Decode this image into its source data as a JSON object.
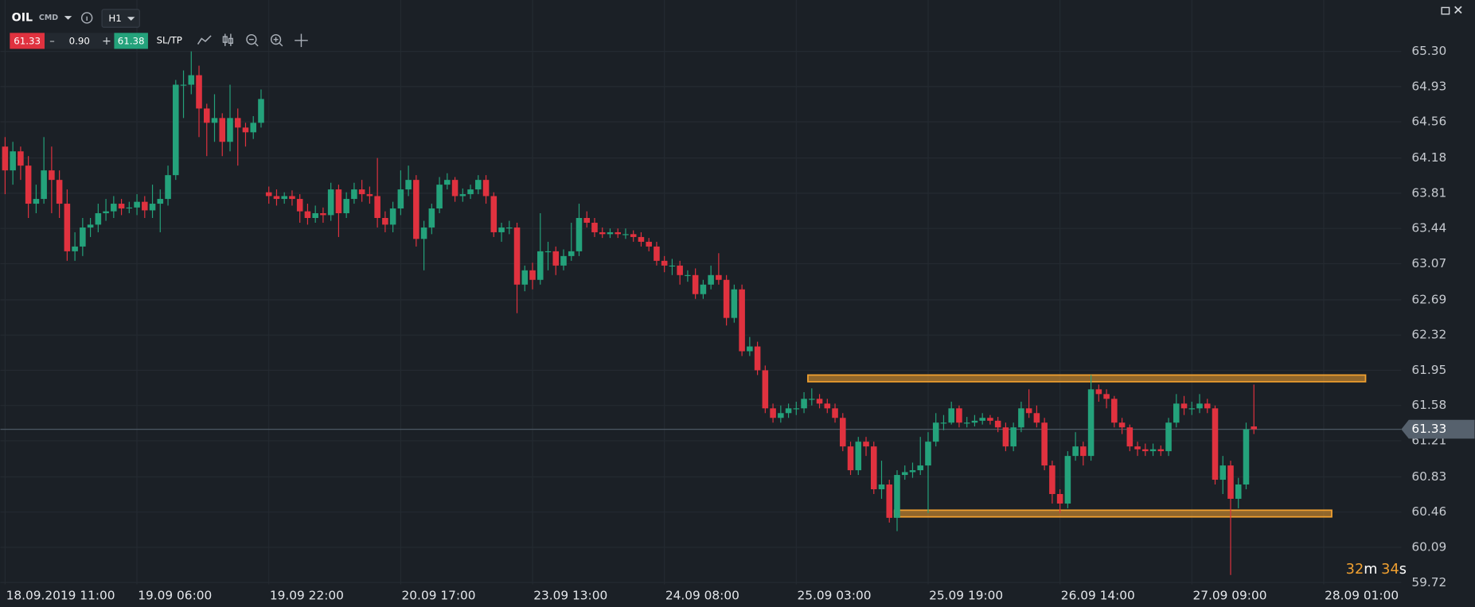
{
  "toolbar": {
    "symbol": "OIL",
    "kind": "CMD",
    "timeframe": "H1",
    "sell": 61.33,
    "volume": "0.90",
    "buy": 61.38,
    "sltp": "SL/TP"
  },
  "countdown": {
    "minutes": 32,
    "minutes_unit": "m",
    "seconds": 34,
    "seconds_unit": "s"
  },
  "chart_data": {
    "type": "candlestick",
    "up_color": "#24a27b",
    "down_color": "#e0323f",
    "grid": true,
    "categories": [
      "18.09.2019 11:00",
      null,
      null,
      null,
      null,
      null,
      null,
      null,
      null,
      null,
      null,
      null,
      null,
      null,
      null,
      null,
      null,
      "19.09 06:00",
      null,
      null,
      null,
      null,
      null,
      null,
      null,
      null,
      null,
      null,
      null,
      null,
      null,
      null,
      null,
      null,
      "19.09 22:00",
      null,
      null,
      null,
      null,
      null,
      null,
      null,
      null,
      null,
      null,
      null,
      null,
      null,
      null,
      null,
      null,
      "20.09 17:00",
      null,
      null,
      null,
      null,
      null,
      null,
      null,
      null,
      null,
      null,
      null,
      null,
      null,
      null,
      null,
      null,
      "23.09 13:00",
      null,
      null,
      null,
      null,
      null,
      null,
      null,
      null,
      null,
      null,
      null,
      null,
      null,
      null,
      null,
      null,
      "24.09 08:00",
      null,
      null,
      null,
      null,
      null,
      null,
      null,
      null,
      null,
      null,
      null,
      null,
      null,
      null,
      null,
      null,
      "25.09 03:00",
      null,
      null,
      null,
      null,
      null,
      null,
      null,
      null,
      null,
      null,
      null,
      null,
      null,
      null,
      null,
      null,
      "25.09 19:00",
      null,
      null,
      null,
      null,
      null,
      null,
      null,
      null,
      null,
      null,
      null,
      null,
      null,
      null,
      null,
      null,
      "26.09 14:00",
      null,
      null,
      null,
      null,
      null,
      null,
      null,
      null,
      null,
      null,
      null,
      null,
      null,
      null,
      null,
      null,
      "27.09 09:00",
      null,
      null,
      null,
      null,
      null,
      null,
      null,
      null,
      null,
      null,
      null,
      null,
      null,
      null,
      null,
      null,
      "28.09 01:00"
    ],
    "open": [
      64.3,
      64.05,
      64.25,
      64.1,
      63.7,
      63.75,
      64.05,
      63.95,
      63.7,
      63.2,
      63.25,
      63.45,
      63.48,
      63.6,
      63.62,
      63.7,
      63.65,
      63.66,
      63.72,
      63.63,
      63.7,
      63.75,
      64.0,
      64.95,
      64.95,
      65.05,
      64.7,
      64.55,
      64.6,
      64.35,
      64.6,
      64.5,
      64.45,
      64.55,
      63.82,
      63.78,
      63.75,
      63.78,
      63.75,
      63.62,
      63.55,
      63.6,
      63.58,
      63.85,
      63.6,
      63.75,
      63.85,
      63.8,
      63.78,
      63.55,
      63.48,
      63.65,
      63.85,
      63.95,
      63.33,
      63.45,
      63.65,
      63.9,
      63.95,
      63.78,
      63.8,
      63.85,
      63.95,
      63.78,
      63.4,
      63.45,
      63.45,
      62.85,
      63.0,
      62.9,
      63.2,
      63.2,
      63.05,
      63.15,
      63.2,
      63.55,
      63.5,
      63.4,
      63.38,
      63.4,
      63.38,
      63.38,
      63.35,
      63.3,
      63.25,
      63.1,
      63.05,
      63.05,
      62.95,
      62.95,
      62.75,
      62.85,
      62.95,
      62.9,
      62.5,
      62.8,
      62.15,
      62.2,
      61.95,
      61.55,
      61.45,
      61.5,
      61.55,
      61.55,
      61.65,
      61.65,
      61.6,
      61.55,
      61.45,
      61.15,
      60.9,
      61.2,
      61.15,
      60.7,
      60.75,
      60.4,
      60.85,
      60.88,
      60.9,
      60.95,
      61.2,
      61.4,
      61.4,
      61.55,
      61.4,
      61.4,
      61.42,
      61.45,
      61.42,
      61.35,
      61.15,
      61.35,
      61.55,
      61.5,
      61.4,
      60.95,
      60.65,
      60.55,
      61.05,
      61.15,
      61.05,
      61.75,
      61.7,
      61.65,
      61.4,
      61.35,
      61.15,
      61.12,
      61.1,
      61.12,
      61.1,
      61.4,
      61.6,
      61.55,
      61.55,
      61.6,
      61.55,
      60.8,
      60.95,
      60.6,
      60.75,
      61.36,
      null,
      null,
      null,
      null,
      null,
      null,
      null,
      null,
      null
    ],
    "high": [
      64.4,
      64.35,
      64.3,
      64.2,
      63.9,
      64.4,
      64.3,
      64.05,
      63.85,
      63.4,
      63.55,
      63.55,
      63.7,
      63.75,
      63.78,
      63.75,
      63.72,
      63.8,
      63.78,
      63.9,
      63.85,
      64.1,
      65.0,
      65.1,
      65.3,
      65.15,
      64.75,
      64.85,
      64.65,
      64.95,
      64.7,
      64.55,
      64.62,
      64.9,
      63.88,
      63.85,
      63.82,
      63.84,
      63.8,
      63.7,
      63.68,
      63.66,
      63.92,
      63.9,
      63.82,
      63.92,
      63.95,
      63.88,
      64.18,
      63.62,
      63.72,
      64.05,
      64.1,
      64.0,
      63.52,
      63.7,
      63.98,
      64.02,
      63.98,
      63.86,
      63.9,
      64.0,
      64.0,
      63.82,
      63.5,
      63.52,
      63.5,
      63.05,
      63.08,
      63.6,
      63.3,
      63.25,
      63.22,
      63.5,
      63.7,
      63.62,
      63.55,
      63.45,
      63.44,
      63.44,
      63.44,
      63.42,
      63.4,
      63.34,
      63.3,
      63.15,
      63.12,
      63.1,
      63.0,
      63.02,
      62.9,
      63.05,
      63.18,
      62.95,
      62.85,
      62.85,
      62.3,
      62.25,
      62.0,
      61.6,
      61.58,
      61.6,
      61.62,
      61.72,
      61.76,
      61.7,
      61.65,
      61.6,
      61.5,
      61.2,
      61.25,
      61.25,
      61.2,
      61.0,
      60.8,
      60.9,
      60.95,
      60.98,
      61.25,
      61.3,
      61.5,
      61.48,
      61.62,
      61.58,
      61.46,
      61.48,
      61.5,
      61.48,
      61.46,
      61.4,
      61.4,
      61.62,
      61.75,
      61.58,
      61.45,
      61.0,
      60.7,
      61.1,
      61.3,
      61.2,
      61.9,
      61.8,
      61.75,
      61.68,
      61.45,
      61.38,
      61.2,
      61.18,
      61.18,
      61.16,
      61.45,
      61.7,
      61.68,
      61.62,
      61.7,
      61.65,
      61.58,
      61.05,
      61.0,
      60.82,
      61.4,
      61.8,
      null,
      null,
      null,
      null,
      null,
      null,
      null,
      null,
      null
    ],
    "low": [
      63.8,
      63.9,
      63.95,
      63.55,
      63.6,
      63.7,
      63.6,
      63.55,
      63.1,
      63.1,
      63.15,
      63.35,
      63.4,
      63.52,
      63.55,
      63.58,
      63.6,
      63.58,
      63.55,
      63.55,
      63.4,
      63.68,
      63.95,
      64.6,
      64.85,
      64.4,
      64.2,
      64.35,
      64.2,
      64.25,
      64.1,
      64.3,
      64.38,
      64.5,
      63.7,
      63.68,
      63.7,
      63.68,
      63.5,
      63.48,
      63.5,
      63.5,
      63.52,
      63.35,
      63.55,
      63.7,
      63.72,
      63.7,
      63.45,
      63.4,
      63.4,
      63.58,
      63.78,
      63.25,
      63.0,
      63.38,
      63.6,
      63.85,
      63.72,
      63.72,
      63.75,
      63.8,
      63.7,
      63.35,
      63.3,
      63.38,
      62.55,
      62.78,
      62.8,
      62.85,
      63.0,
      62.95,
      63.0,
      63.1,
      63.15,
      63.45,
      63.35,
      63.34,
      63.34,
      63.34,
      63.33,
      63.3,
      63.25,
      63.2,
      63.05,
      62.98,
      62.95,
      62.85,
      62.88,
      62.7,
      62.7,
      62.8,
      62.85,
      62.42,
      62.45,
      62.1,
      62.1,
      61.9,
      61.5,
      61.4,
      61.4,
      61.45,
      61.48,
      61.5,
      61.58,
      61.55,
      61.5,
      61.4,
      61.1,
      60.85,
      60.85,
      61.05,
      60.65,
      60.6,
      60.35,
      60.26,
      60.8,
      60.82,
      60.85,
      60.45,
      61.15,
      61.32,
      61.38,
      61.35,
      61.35,
      61.36,
      61.38,
      61.38,
      61.3,
      61.1,
      61.1,
      61.3,
      61.45,
      61.35,
      60.9,
      60.55,
      60.45,
      60.5,
      61.0,
      60.95,
      61.0,
      61.62,
      61.55,
      61.35,
      61.28,
      61.1,
      61.05,
      61.05,
      61.05,
      61.05,
      61.05,
      61.35,
      61.48,
      61.48,
      61.5,
      61.5,
      60.75,
      60.65,
      59.8,
      60.5,
      60.7,
      61.28,
      null,
      null,
      null,
      null,
      null,
      null,
      null,
      null,
      null
    ],
    "close": [
      64.05,
      64.25,
      64.1,
      63.7,
      63.75,
      64.05,
      63.95,
      63.7,
      63.2,
      63.25,
      63.45,
      63.48,
      63.6,
      63.62,
      63.7,
      63.65,
      63.66,
      63.72,
      63.63,
      63.7,
      63.75,
      64.0,
      64.95,
      64.95,
      65.05,
      64.7,
      64.55,
      64.6,
      64.35,
      64.6,
      64.5,
      64.45,
      64.55,
      64.8,
      63.78,
      63.75,
      63.78,
      63.75,
      63.62,
      63.55,
      63.6,
      63.58,
      63.85,
      63.6,
      63.75,
      63.85,
      63.8,
      63.78,
      63.55,
      63.48,
      63.65,
      63.85,
      63.95,
      63.33,
      63.45,
      63.65,
      63.9,
      63.95,
      63.78,
      63.8,
      63.85,
      63.95,
      63.78,
      63.4,
      63.45,
      63.45,
      62.85,
      63.0,
      62.9,
      63.2,
      63.2,
      63.05,
      63.15,
      63.2,
      63.55,
      63.5,
      63.4,
      63.38,
      63.4,
      63.38,
      63.38,
      63.35,
      63.3,
      63.25,
      63.1,
      63.05,
      63.05,
      62.95,
      62.95,
      62.75,
      62.85,
      62.95,
      62.9,
      62.5,
      62.8,
      62.15,
      62.2,
      61.95,
      61.55,
      61.45,
      61.5,
      61.55,
      61.55,
      61.65,
      61.65,
      61.6,
      61.55,
      61.45,
      61.15,
      60.9,
      61.2,
      61.15,
      60.7,
      60.75,
      60.4,
      60.85,
      60.88,
      60.9,
      60.95,
      61.2,
      61.4,
      61.4,
      61.55,
      61.4,
      61.4,
      61.42,
      61.45,
      61.42,
      61.35,
      61.15,
      61.35,
      61.55,
      61.5,
      61.4,
      60.95,
      60.65,
      60.55,
      61.05,
      61.15,
      61.05,
      61.75,
      61.7,
      61.65,
      61.4,
      61.35,
      61.15,
      61.12,
      61.1,
      61.12,
      61.1,
      61.4,
      61.6,
      61.55,
      61.55,
      61.6,
      61.55,
      60.8,
      60.95,
      60.6,
      60.75,
      61.33,
      61.33,
      null,
      null,
      null,
      null,
      null,
      null,
      null,
      null,
      null
    ],
    "ylim": [
      59.7,
      65.84
    ],
    "yticks": [
      {
        "value": 65.3,
        "label": "65.30"
      },
      64.93,
      64.56,
      64.18,
      63.81,
      63.44,
      63.07,
      62.69,
      62.32,
      61.95,
      61.58,
      61.21,
      60.83,
      60.46,
      60.09,
      59.72
    ],
    "zones": [
      {
        "low": 61.83,
        "high": 61.9,
        "color": "#f0a030"
      },
      {
        "low": 60.41,
        "high": 60.48,
        "color": "#f0a030"
      }
    ],
    "last_price": 61.33
  }
}
